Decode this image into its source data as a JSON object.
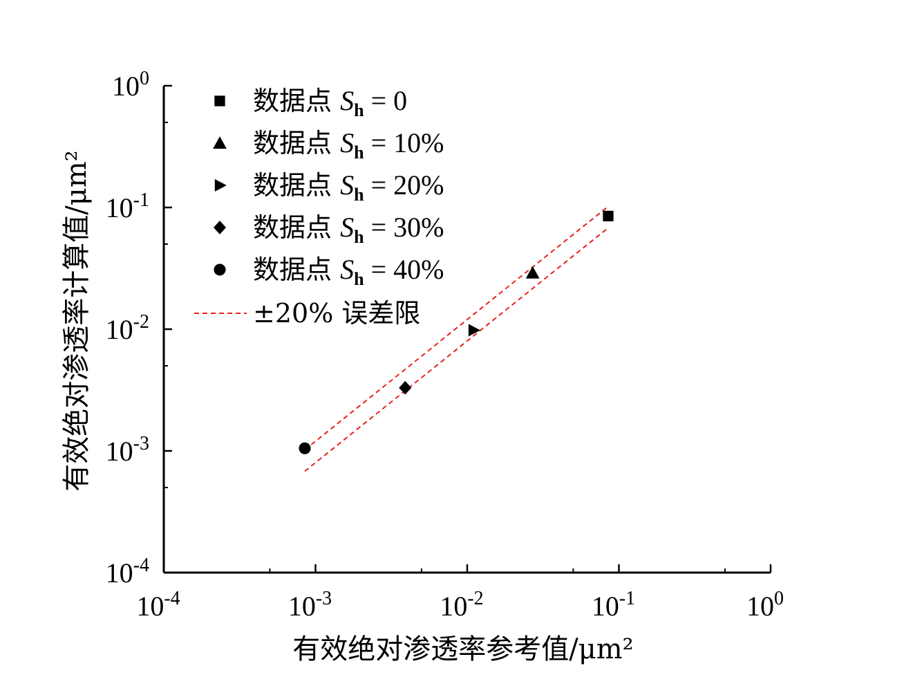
{
  "chart_data": {
    "type": "scatter",
    "x_scale": "log",
    "y_scale": "log",
    "xlim": [
      0.0001,
      1
    ],
    "ylim": [
      0.0001,
      1
    ],
    "xlabel": "有效绝对渗透率参考值/μm²",
    "ylabel": "有效绝对渗透率计算值/μm²",
    "x_ticks": [
      {
        "value": 0.0001,
        "base": "10",
        "exp": "-4"
      },
      {
        "value": 0.001,
        "base": "10",
        "exp": "-3"
      },
      {
        "value": 0.01,
        "base": "10",
        "exp": "-2"
      },
      {
        "value": 0.1,
        "base": "10",
        "exp": "-1"
      },
      {
        "value": 1,
        "base": "10",
        "exp": "0"
      }
    ],
    "y_ticks": [
      {
        "value": 0.0001,
        "base": "10",
        "exp": "-4"
      },
      {
        "value": 0.001,
        "base": "10",
        "exp": "-3"
      },
      {
        "value": 0.01,
        "base": "10",
        "exp": "-2"
      },
      {
        "value": 0.1,
        "base": "10",
        "exp": "-1"
      },
      {
        "value": 1,
        "base": "10",
        "exp": "0"
      }
    ],
    "grid": false,
    "legend_position": "top-left",
    "series": [
      {
        "name_prefix": "数据点 ",
        "name_var": "S",
        "name_sub": "h",
        "name_suffix": " = 0",
        "marker": "square",
        "x": [
          0.085
        ],
        "y": [
          0.085
        ]
      },
      {
        "name_prefix": "数据点 ",
        "name_var": "S",
        "name_sub": "h",
        "name_suffix": " = 10%",
        "marker": "triangle-up",
        "x": [
          0.027
        ],
        "y": [
          0.029
        ]
      },
      {
        "name_prefix": "数据点 ",
        "name_var": "S",
        "name_sub": "h",
        "name_suffix": " = 20%",
        "marker": "triangle-right",
        "x": [
          0.011
        ],
        "y": [
          0.0098
        ]
      },
      {
        "name_prefix": "数据点 ",
        "name_var": "S",
        "name_sub": "h",
        "name_suffix": " = 30%",
        "marker": "diamond",
        "x": [
          0.0039
        ],
        "y": [
          0.0033
        ]
      },
      {
        "name_prefix": "数据点 ",
        "name_var": "S",
        "name_sub": "h",
        "name_suffix": " = 40%",
        "marker": "circle",
        "x": [
          0.00085
        ],
        "y": [
          0.00105
        ]
      }
    ],
    "error_bands": {
      "name": "±20% 误差限",
      "color": "#e8201c",
      "x_range": [
        0.00085,
        0.085
      ],
      "factors": [
        1.2,
        0.8
      ]
    }
  }
}
